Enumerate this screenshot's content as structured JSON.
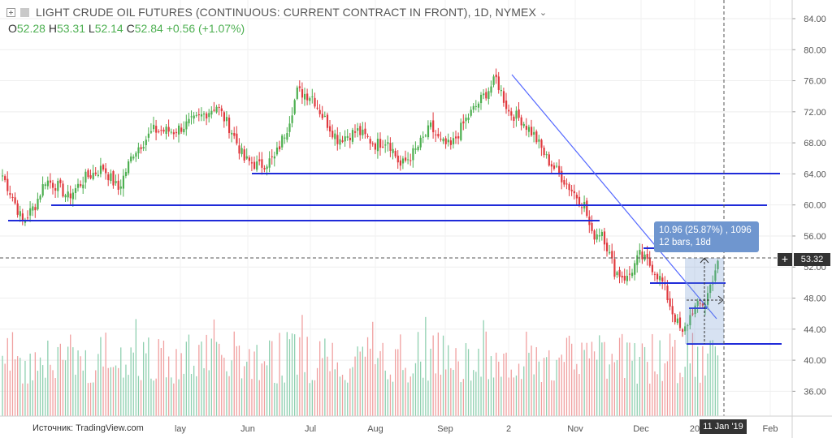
{
  "header": {
    "title": "LIGHT CRUDE OIL FUTURES (CONTINUOUS: CURRENT CONTRACT IN FRONT), 1D, NYMEX",
    "ohlc": {
      "o_label": "O",
      "o": "52.28",
      "h_label": "H",
      "h": "53.31",
      "l_label": "L",
      "l": "52.14",
      "c_label": "C",
      "c": "52.84",
      "change": "+0.56 (+1.07%)"
    }
  },
  "source_label": "Источник: TradingView.com",
  "current_price": "53.32",
  "cursor_date": "11 Jan '19",
  "crosshair_symbol": "+",
  "measurement": {
    "line1": "10.96 (25.87%) , 1096",
    "line2": "12 bars, 18d"
  },
  "colors": {
    "up": "#4caf50",
    "down": "#e0393e",
    "drawing": "#1f2bd9",
    "trend": "#5468ff",
    "vol_up": "#8fd0b0",
    "vol_down": "#f0a0a0",
    "measure": "#6f96cf"
  },
  "chart_data": {
    "type": "candlestick",
    "y_axis": {
      "ticks": [
        36.0,
        40.0,
        44.0,
        48.0,
        52.0,
        56.0,
        60.0,
        64.0,
        68.0,
        72.0,
        76.0,
        80.0,
        84.0
      ],
      "tick_labels": [
        "36.00",
        "40.00",
        "44.00",
        "48.00",
        "52.00",
        "56.00",
        "60.00",
        "64.00",
        "68.00",
        "72.00",
        "76.00",
        "80.00",
        "84.00"
      ],
      "range": [
        32.8,
        86.4
      ]
    },
    "x_axis": {
      "labels": [
        "lay",
        "Jun",
        "Jul",
        "Aug",
        "Sep",
        "2",
        "Nov",
        "Dec",
        "20",
        "Feb"
      ]
    },
    "anchors": [
      {
        "bar": 0,
        "price": 63.8
      },
      {
        "bar": 4,
        "price": 61.0
      },
      {
        "bar": 8,
        "price": 57.8
      },
      {
        "bar": 13,
        "price": 60.0
      },
      {
        "bar": 17,
        "price": 63.2
      },
      {
        "bar": 22,
        "price": 62.4
      },
      {
        "bar": 26,
        "price": 61.0
      },
      {
        "bar": 33,
        "price": 63.5
      },
      {
        "bar": 40,
        "price": 64.8
      },
      {
        "bar": 46,
        "price": 62.0
      },
      {
        "bar": 52,
        "price": 66.8
      },
      {
        "bar": 60,
        "price": 69.6
      },
      {
        "bar": 68,
        "price": 69.5
      },
      {
        "bar": 77,
        "price": 71.0
      },
      {
        "bar": 85,
        "price": 72.8
      },
      {
        "bar": 91,
        "price": 69.5
      },
      {
        "bar": 96,
        "price": 65.8
      },
      {
        "bar": 102,
        "price": 65.0
      },
      {
        "bar": 108,
        "price": 66.0
      },
      {
        "bar": 113,
        "price": 70.0
      },
      {
        "bar": 117,
        "price": 74.6
      },
      {
        "bar": 123,
        "price": 74.0
      },
      {
        "bar": 127,
        "price": 71.5
      },
      {
        "bar": 133,
        "price": 68.5
      },
      {
        "bar": 141,
        "price": 69.5
      },
      {
        "bar": 148,
        "price": 67.8
      },
      {
        "bar": 153,
        "price": 68.4
      },
      {
        "bar": 158,
        "price": 65.0
      },
      {
        "bar": 164,
        "price": 67.0
      },
      {
        "bar": 170,
        "price": 70.0
      },
      {
        "bar": 174,
        "price": 68.0
      },
      {
        "bar": 178,
        "price": 67.5
      },
      {
        "bar": 184,
        "price": 71.0
      },
      {
        "bar": 191,
        "price": 74.0
      },
      {
        "bar": 196,
        "price": 76.2
      },
      {
        "bar": 201,
        "price": 72.0
      },
      {
        "bar": 206,
        "price": 71.0
      },
      {
        "bar": 211,
        "price": 69.0
      },
      {
        "bar": 216,
        "price": 66.0
      },
      {
        "bar": 221,
        "price": 64.0
      },
      {
        "bar": 227,
        "price": 61.5
      },
      {
        "bar": 231,
        "price": 60.0
      },
      {
        "bar": 234,
        "price": 56.0
      },
      {
        "bar": 238,
        "price": 56.7
      },
      {
        "bar": 243,
        "price": 51.5
      },
      {
        "bar": 248,
        "price": 50.5
      },
      {
        "bar": 253,
        "price": 53.5
      },
      {
        "bar": 258,
        "price": 52.0
      },
      {
        "bar": 262,
        "price": 50.0
      },
      {
        "bar": 266,
        "price": 46.2
      },
      {
        "bar": 270,
        "price": 43.2
      },
      {
        "bar": 274,
        "price": 46.5
      },
      {
        "bar": 279,
        "price": 47.5
      },
      {
        "bar": 284,
        "price": 52.8
      }
    ]
  }
}
